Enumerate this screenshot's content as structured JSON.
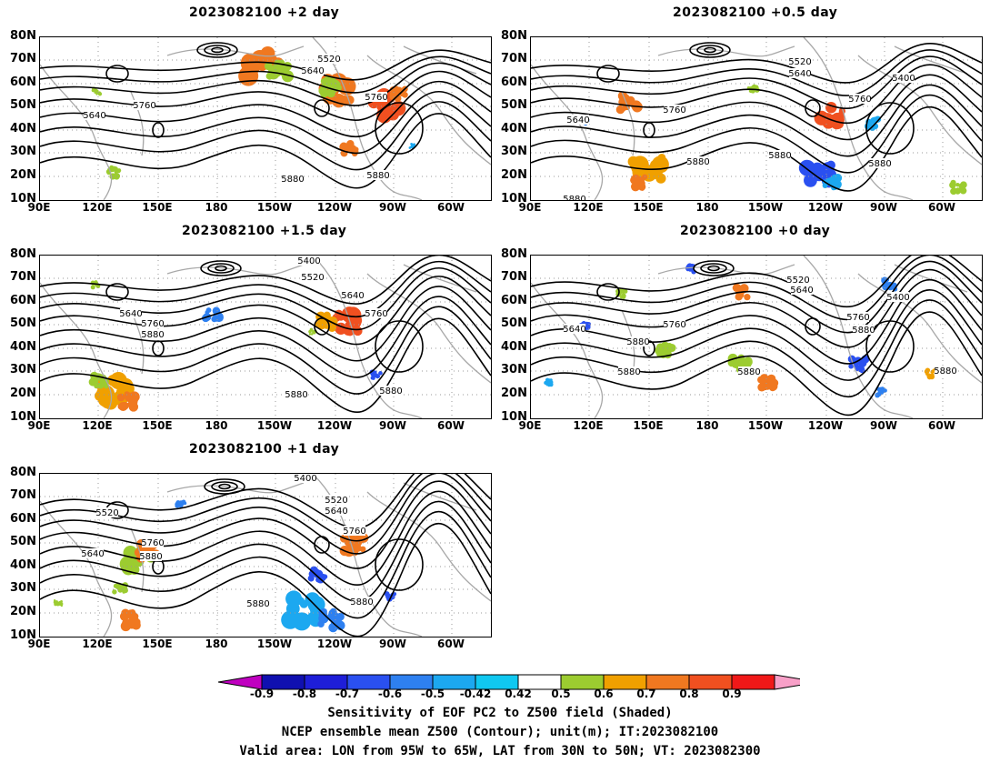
{
  "panels": [
    {
      "id": "p1",
      "title": "2023082100  +2 day"
    },
    {
      "id": "p2",
      "title": "2023082100  +0.5 day"
    },
    {
      "id": "p3",
      "title": "2023082100  +1.5 day"
    },
    {
      "id": "p4",
      "title": "2023082100  +0 day"
    },
    {
      "id": "p5",
      "title": "2023082100  +1 day"
    }
  ],
  "lat_labels": [
    "80N",
    "70N",
    "60N",
    "50N",
    "40N",
    "30N",
    "20N",
    "10N"
  ],
  "lon_labels": [
    "90E",
    "120E",
    "150E",
    "180",
    "150W",
    "120W",
    "90W",
    "60W"
  ],
  "contour_labels": {
    "p1": [
      "5520",
      "5640",
      "5640",
      "5760",
      "5760",
      "5880",
      "5880"
    ],
    "p2": [
      "5520",
      "5640",
      "5400",
      "5640",
      "5760",
      "5760",
      "5880",
      "5880",
      "5880",
      "5880"
    ],
    "p3": [
      "5400",
      "5520",
      "5640",
      "5640",
      "5760",
      "5760",
      "5880",
      "5880",
      "5880"
    ],
    "p4": [
      "5520",
      "5640",
      "5400",
      "5640",
      "5760",
      "5760",
      "5880",
      "5880",
      "5880",
      "5880",
      "5880"
    ],
    "p5": [
      "5400",
      "5520",
      "5520",
      "5640",
      "5640",
      "5760",
      "5760",
      "5880",
      "5880",
      "5880"
    ]
  },
  "colorbar": {
    "ticks": [
      "-0.9",
      "-0.8",
      "-0.7",
      "-0.6",
      "-0.5",
      "-0.42",
      "0.42",
      "0.5",
      "0.6",
      "0.7",
      "0.8",
      "0.9"
    ],
    "colors": [
      "#c000c0",
      "#1010b0",
      "#1e1ed8",
      "#2a50f0",
      "#2e80f0",
      "#1ca8f0",
      "#10c8f0",
      "#ffffff",
      "#9ccc30",
      "#f0a000",
      "#f07820",
      "#f05020",
      "#f01818",
      "#f8a0c8"
    ]
  },
  "footer": {
    "line1": "Sensitivity of EOF PC2 to Z500 field (Shaded)",
    "line2": "NCEP ensemble mean Z500 (Contour); unit(m); IT:2023082100",
    "line3": "Valid area: LON from 95W to 65W, LAT from 30N to 50N; VT: 2023082300"
  }
}
